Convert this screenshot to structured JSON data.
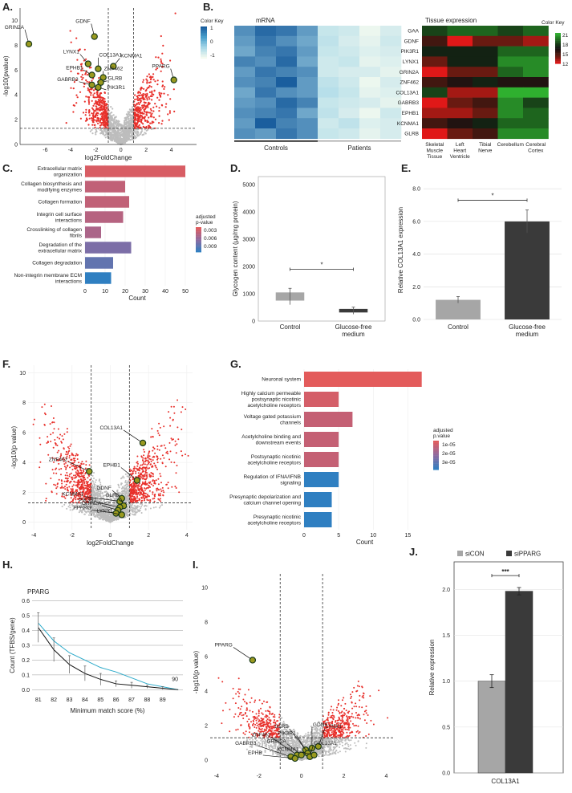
{
  "panels": {
    "A": "A.",
    "B": "B.",
    "C": "C.",
    "D": "D.",
    "E": "E.",
    "F": "F.",
    "G": "G.",
    "H": "H.",
    "I": "I.",
    "J": "J."
  },
  "chart_data": [
    {
      "id": "A",
      "type": "scatter",
      "xlabel": "log2FoldChange",
      "ylabel": "-log10(pvalue)",
      "xlim": [
        -8,
        6
      ],
      "ylim": [
        0,
        11
      ],
      "xticks": [
        "-6",
        "-4",
        "-2",
        "0",
        "2",
        "4"
      ],
      "yticks": [
        "0",
        "2",
        "4",
        "6",
        "8",
        "10"
      ],
      "thresholds": {
        "x": [
          -1,
          1
        ],
        "y": 1.3
      },
      "genes": [
        {
          "name": "GRIN2A",
          "x": -7.3,
          "y": 8.1
        },
        {
          "name": "GDNF",
          "x": -2.1,
          "y": 8.7
        },
        {
          "name": "LYNX1",
          "x": -2.6,
          "y": 6.5
        },
        {
          "name": "COL13A1",
          "x": -1.8,
          "y": 6.1
        },
        {
          "name": "KCNMA1",
          "x": -0.6,
          "y": 6.3
        },
        {
          "name": "EPHB1",
          "x": -2.3,
          "y": 5.6
        },
        {
          "name": "ZNF462",
          "x": -1.4,
          "y": 5.4
        },
        {
          "name": "GABRB3",
          "x": -2.3,
          "y": 4.8
        },
        {
          "name": "GLRB",
          "x": -1.6,
          "y": 5.0
        },
        {
          "name": "PIK3R1",
          "x": -1.8,
          "y": 4.6
        },
        {
          "name": "PPARG",
          "x": 4.2,
          "y": 5.2
        }
      ]
    },
    {
      "id": "B-mRNA",
      "type": "heatmap",
      "title": "mRNA",
      "rows": [
        "GAA",
        "GDNF",
        "PIK3R1",
        "LYNX1",
        "GRIN2A",
        "ZNF462",
        "COL13A1",
        "GABRB3",
        "EPHB1",
        "KCNMA1",
        "GLRB"
      ],
      "groups": [
        "Controls",
        "Patients"
      ],
      "legend_title": "Color Key",
      "legend_ticks": [
        "1",
        "0",
        "-1"
      ],
      "values": [
        [
          0.6,
          0.9,
          0.8,
          0.5,
          -0.4,
          -0.5,
          -0.9,
          -0.6
        ],
        [
          0.5,
          0.8,
          0.6,
          0.4,
          -0.3,
          -0.6,
          -0.8,
          -0.5
        ],
        [
          0.4,
          0.7,
          0.8,
          0.5,
          -0.4,
          -0.5,
          -0.7,
          -0.6
        ],
        [
          0.7,
          0.6,
          0.9,
          0.4,
          -0.5,
          -0.4,
          -0.8,
          -0.7
        ],
        [
          0.5,
          0.8,
          0.7,
          0.6,
          -0.5,
          -0.6,
          -0.6,
          -0.8
        ],
        [
          0.6,
          0.7,
          1.0,
          0.5,
          -0.3,
          -0.5,
          -0.9,
          -0.6
        ],
        [
          0.4,
          0.8,
          0.6,
          0.5,
          -0.2,
          -0.4,
          -0.8,
          -0.7
        ],
        [
          0.5,
          0.6,
          0.9,
          0.7,
          -0.4,
          -0.5,
          -0.6,
          -0.8
        ],
        [
          0.6,
          0.7,
          0.8,
          0.4,
          -0.3,
          -0.6,
          -0.9,
          -0.5
        ],
        [
          0.5,
          1.0,
          0.7,
          0.6,
          -0.5,
          -0.3,
          -0.7,
          -0.6
        ],
        [
          0.6,
          0.5,
          0.8,
          0.6,
          -0.4,
          -0.5,
          -0.8,
          -0.6
        ]
      ]
    },
    {
      "id": "B-tissue",
      "type": "heatmap",
      "title": "Tissue expression",
      "rows": [
        "GAA",
        "GDNF",
        "PIK3R1",
        "LYNX1",
        "GRIN2A",
        "ZNF462",
        "COL13A1",
        "GABRB3",
        "EPHB1",
        "KCNMA1",
        "GLRB"
      ],
      "columns": [
        "Skeletal Muscle Tissue",
        "Left Heart Ventricle",
        "Tibial Nerve",
        "Cerebellum",
        "Cerebral Cortex"
      ],
      "legend_title": "Color Key",
      "legend_ticks": [
        "21",
        "18",
        "15",
        "12"
      ],
      "values": [
        [
          18,
          19,
          19,
          18,
          19
        ],
        [
          15,
          11,
          14,
          14,
          13
        ],
        [
          17,
          17,
          17,
          19,
          19
        ],
        [
          14,
          17,
          17,
          20,
          20
        ],
        [
          12,
          14,
          14,
          19,
          20
        ],
        [
          15,
          16,
          17,
          16,
          16
        ],
        [
          18,
          13,
          13,
          21,
          21
        ],
        [
          12,
          14,
          15,
          20,
          18
        ],
        [
          13,
          13,
          14,
          20,
          19
        ],
        [
          15,
          16,
          17,
          19,
          19
        ],
        [
          12,
          14,
          15,
          20,
          20
        ]
      ]
    },
    {
      "id": "C",
      "type": "bar",
      "orientation": "horizontal",
      "categories": [
        "Extracellular matrix organization",
        "Collagen biosynthesis and modifying enzymes",
        "Collagen formation",
        "Integrin cell surface interactions",
        "Crosslinking of collagen fibrils",
        "Degradation of the extracellular matrix",
        "Collagen degradation",
        "Non-integrin membrane ECM interactions"
      ],
      "values": [
        50,
        20,
        22,
        19,
        8,
        23,
        14,
        13
      ],
      "padj": [
        0.0025,
        0.0035,
        0.0035,
        0.004,
        0.0045,
        0.0065,
        0.0075,
        0.0095
      ],
      "xlabel": "Count",
      "xlim": [
        0,
        52
      ],
      "xticks": [
        "0",
        "10",
        "20",
        "30",
        "40",
        "50"
      ],
      "legend_title": "adjusted p-value",
      "legend_ticks": [
        "0.003",
        "0.006",
        "0.009"
      ]
    },
    {
      "id": "D",
      "type": "bar",
      "categories": [
        "Control",
        "Glucose-free medium"
      ],
      "values": [
        900,
        380
      ],
      "errors": [
        300,
        130
      ],
      "ylabel": "Glycogen content (μg/mg protein)",
      "ylim": [
        0,
        5300
      ],
      "yticks": [
        "0",
        "1000",
        "2000",
        "3000",
        "4000",
        "5000"
      ],
      "significance": "*"
    },
    {
      "id": "E",
      "type": "bar",
      "categories": [
        "Control",
        "Glucose-free medium"
      ],
      "values": [
        1.2,
        6.0
      ],
      "errors": [
        0.2,
        0.7
      ],
      "ylabel": "Relative COL13A1 expression",
      "ylim": [
        0,
        8.5
      ],
      "yticks": [
        "0.0",
        "2.0",
        "4.0",
        "6.0",
        "8.0"
      ],
      "significance": "*"
    },
    {
      "id": "F",
      "type": "scatter",
      "xlabel": "log2FoldChange",
      "ylabel": "-log10(p value)",
      "xlim": [
        -4.3,
        4.3
      ],
      "ylim": [
        -0.5,
        10.5
      ],
      "xticks": [
        "-4",
        "-2",
        "0",
        "2",
        "4"
      ],
      "yticks": [
        "0",
        "2",
        "4",
        "6",
        "8",
        "10"
      ],
      "thresholds": {
        "x": [
          -1,
          1
        ],
        "y": 1.3
      },
      "genes": [
        {
          "name": "COL13A1",
          "x": 1.7,
          "y": 5.3
        },
        {
          "name": "ZNF462",
          "x": -1.1,
          "y": 3.4
        },
        {
          "name": "EPHB1",
          "x": 1.4,
          "y": 2.8
        },
        {
          "name": "KCNMA1",
          "x": 0.5,
          "y": 1.4
        },
        {
          "name": "GDNF",
          "x": 0.6,
          "y": 1.6
        },
        {
          "name": "GLRB",
          "x": 0.7,
          "y": 1.1
        },
        {
          "name": "PIK3R1",
          "x": 0.5,
          "y": 1.0
        },
        {
          "name": "GRIN2A",
          "x": 0.4,
          "y": 0.8
        },
        {
          "name": "PPARG",
          "x": 0.3,
          "y": 0.6
        },
        {
          "name": "LYNX1",
          "x": 0.6,
          "y": 0.5
        }
      ]
    },
    {
      "id": "G",
      "type": "bar",
      "orientation": "horizontal",
      "categories": [
        "Neuronal system",
        "Highly calcium permeable postsynaptic nicotinic acetylcholine receptors",
        "Voltage gated potassium channels",
        "Acetylcholine binding and downstream events",
        "Postsynaptic nicotinic acetylcholine receptors",
        "Regulation of IFNA/IFNB signaling",
        "Presynaptic depolarization and calcium channel opening",
        "Presynaptic nicotinic acetylcholine receptors"
      ],
      "values": [
        17,
        5,
        7,
        5,
        5,
        5,
        4,
        4
      ],
      "padj": [
        8e-06,
        1e-05,
        1.2e-05,
        1.2e-05,
        1.2e-05,
        3e-05,
        3e-05,
        3e-05
      ],
      "xlabel": "Count",
      "xlim": [
        0,
        17.5
      ],
      "xticks": [
        "0",
        "5",
        "10",
        "15"
      ],
      "legend_title": "adjusted p.value",
      "legend_ticks": [
        "1e-05",
        "2e-05",
        "3e-05"
      ]
    },
    {
      "id": "H",
      "type": "line",
      "title": "PPARG",
      "x": [
        81,
        82,
        83,
        84,
        85,
        86,
        87,
        88,
        89,
        90
      ],
      "series": [
        {
          "name": "black",
          "values": [
            0.42,
            0.27,
            0.17,
            0.11,
            0.07,
            0.04,
            0.03,
            0.02,
            0.01,
            0.0
          ],
          "errors": [
            0.1,
            0.08,
            0.06,
            0.05,
            0.04,
            0.02,
            0.02,
            0.01,
            0.01,
            0.0
          ]
        },
        {
          "name": "blue",
          "values": [
            0.45,
            0.33,
            0.25,
            0.2,
            0.15,
            0.12,
            0.08,
            0.04,
            0.02,
            0.0
          ]
        }
      ],
      "xlabel": "Minimum match score (%)",
      "ylabel": "Count (TFBS/gene)",
      "ylim": [
        -0.02,
        0.62
      ],
      "yticks": [
        "0.0",
        "0.1",
        "0.2",
        "0.3",
        "0.4",
        "0.5",
        "0.6"
      ],
      "xticks": [
        "81",
        "82",
        "83",
        "84",
        "85",
        "86",
        "87",
        "88",
        "89"
      ],
      "end_label": "90"
    },
    {
      "id": "I",
      "type": "scatter",
      "xlabel": "",
      "ylabel": "-log10(p value)",
      "xlim": [
        -4.3,
        4.4
      ],
      "ylim": [
        -0.6,
        10.8
      ],
      "xticks": [
        "-4",
        "-2",
        "0",
        "2",
        "4"
      ],
      "yticks": [
        "0",
        "2",
        "4",
        "6",
        "8",
        "10"
      ],
      "thresholds": {
        "x": [
          -1,
          1
        ],
        "y": 1.3
      },
      "genes": [
        {
          "name": "PPARG",
          "x": -2.3,
          "y": 5.8
        },
        {
          "name": "GLRB",
          "x": 0.2,
          "y": 0.6
        },
        {
          "name": "GDNF",
          "x": 0.5,
          "y": 0.7
        },
        {
          "name": "ZNF462",
          "x": -0.2,
          "y": 0.3
        },
        {
          "name": "PIK3R1",
          "x": 0.3,
          "y": 0.4
        },
        {
          "name": "LYNX1",
          "x": 0.8,
          "y": 0.8
        },
        {
          "name": "GABRB3",
          "x": -0.5,
          "y": 0.2
        },
        {
          "name": "GRIN2A",
          "x": 0.0,
          "y": 0.3
        },
        {
          "name": "COL13A1",
          "x": 0.4,
          "y": 0.2
        },
        {
          "name": "EPHB",
          "x": -0.3,
          "y": 0.1
        },
        {
          "name": "KCNMA1",
          "x": 0.6,
          "y": 0.3
        }
      ]
    },
    {
      "id": "J",
      "type": "bar",
      "categories": [
        "COL13A1"
      ],
      "series": [
        {
          "name": "siCON",
          "values": [
            1.0
          ],
          "errors": [
            0.07
          ]
        },
        {
          "name": "siPPARG",
          "values": [
            1.98
          ],
          "errors": [
            0.04
          ]
        }
      ],
      "ylabel": "Relative expression",
      "ylim": [
        0,
        2.3
      ],
      "yticks": [
        "0.0",
        "0.5",
        "1.0",
        "1.5",
        "2.0"
      ],
      "significance": "***"
    }
  ],
  "labels": {
    "b_controls": "Controls",
    "b_patients": "Patients",
    "d_control": "Control",
    "d_glucose1": "Glucose-free",
    "d_glucose2": "medium",
    "e_control": "Control",
    "e_glucose1": "Glucose-free",
    "e_glucose2": "medium",
    "tissue_col1a": "Skeletal",
    "tissue_col1b": "Muscle",
    "tissue_col1c": "Tissue",
    "tissue_col2a": "Left",
    "tissue_col2b": "Heart",
    "tissue_col2c": "Ventricle",
    "tissue_col3a": "Tibial",
    "tissue_col3b": "Nerve",
    "tissue_col4": "Cerebellum",
    "tissue_col5a": "Cerebral",
    "tissue_col5b": "Cortex"
  },
  "colors": {
    "red": "#e8302b",
    "grey": "#bdbdbd",
    "dark": "#3a3a3a",
    "lightgrey": "#a6a6a6",
    "gene": "#9a9a1f",
    "blue_line": "#2aa9c9"
  }
}
